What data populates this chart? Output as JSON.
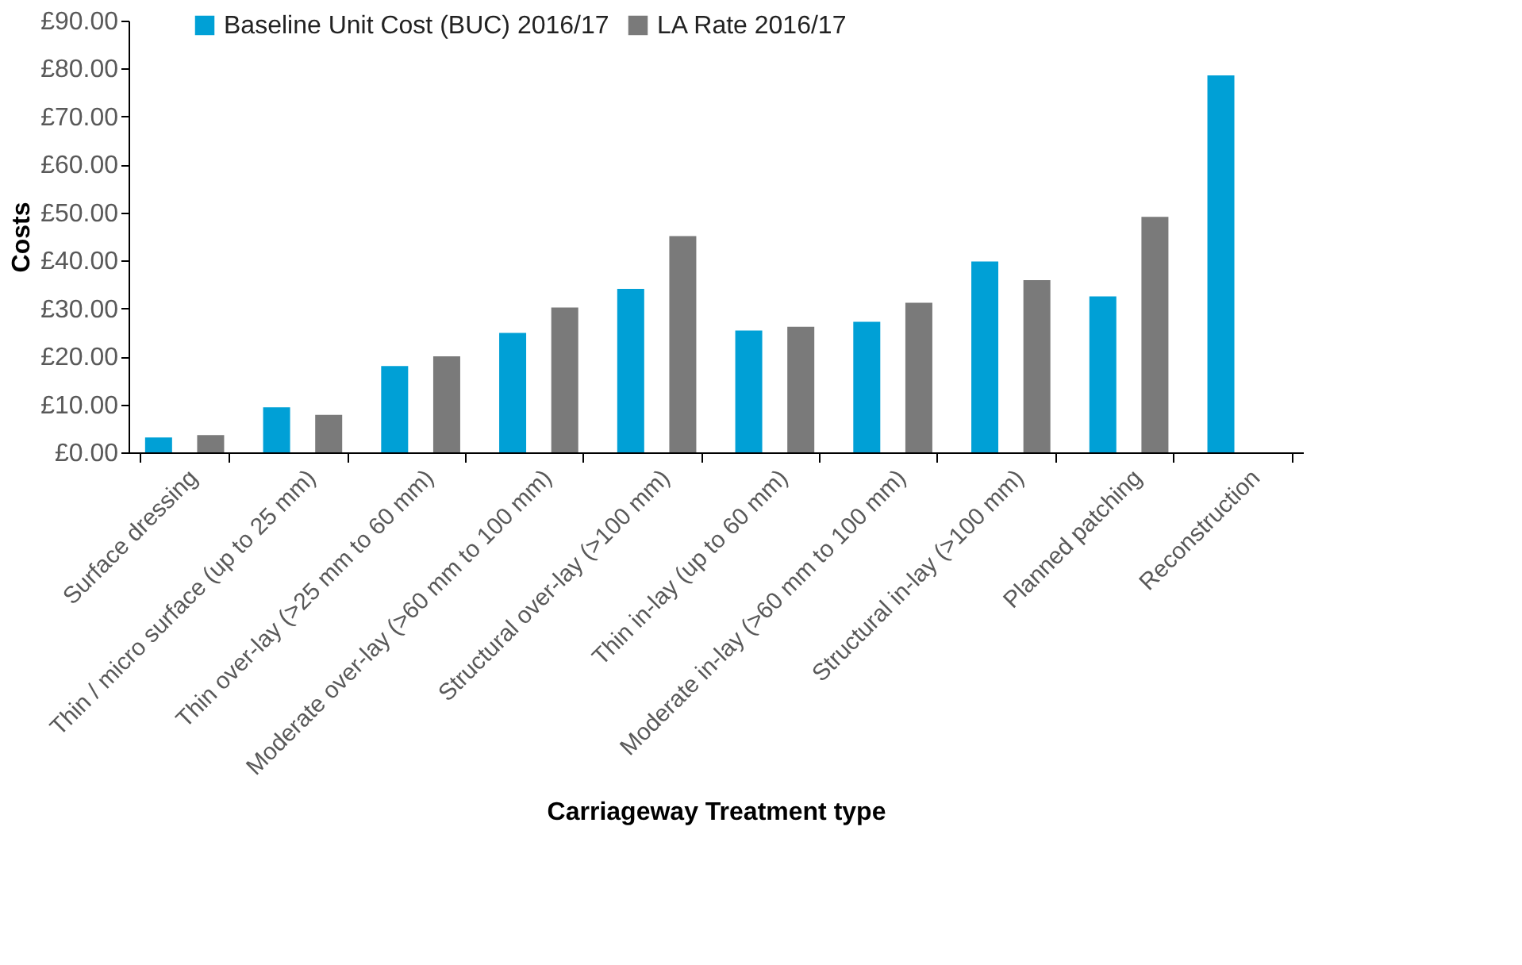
{
  "chart_data": {
    "type": "bar",
    "xlabel": "Carriageway Treatment type",
    "ylabel": "Costs",
    "categories": [
      "Surface dressing",
      "Thin / micro surface (up to 25 mm)",
      "Thin over-lay (>25 mm to 60 mm)",
      "Moderate over-lay (>60 mm to 100 mm)",
      "Structural over-lay (>100 mm)",
      "Thin in-lay (up to 60 mm)",
      "Moderate in-lay (>60 mm to 100 mm)",
      "Structural in-lay (>100 mm)",
      "Planned patching",
      "Reconstruction"
    ],
    "series": [
      {
        "name": "Baseline Unit Cost (BUC) 2016/17",
        "color": "#00a0d6",
        "values": [
          3.1,
          9.4,
          18.0,
          24.9,
          34.1,
          25.4,
          27.2,
          39.8,
          32.5,
          78.6
        ]
      },
      {
        "name": "LA Rate 2016/17",
        "color": "#7a7a7a",
        "values": [
          3.6,
          7.8,
          20.0,
          30.2,
          45.1,
          26.2,
          31.2,
          35.9,
          49.1,
          null
        ]
      }
    ],
    "ylim": [
      0,
      90
    ],
    "yticks": [
      {
        "value": 0,
        "label": "£0.00"
      },
      {
        "value": 10,
        "label": "£10.00"
      },
      {
        "value": 20,
        "label": "£20.00"
      },
      {
        "value": 30,
        "label": "£30.00"
      },
      {
        "value": 40,
        "label": "£40.00"
      },
      {
        "value": 50,
        "label": "£50.00"
      },
      {
        "value": 60,
        "label": "£60.00"
      },
      {
        "value": 70,
        "label": "£70.00"
      },
      {
        "value": 80,
        "label": "£80.00"
      },
      {
        "value": 90,
        "label": "£90.00"
      }
    ],
    "grid": false,
    "legend": "top"
  }
}
